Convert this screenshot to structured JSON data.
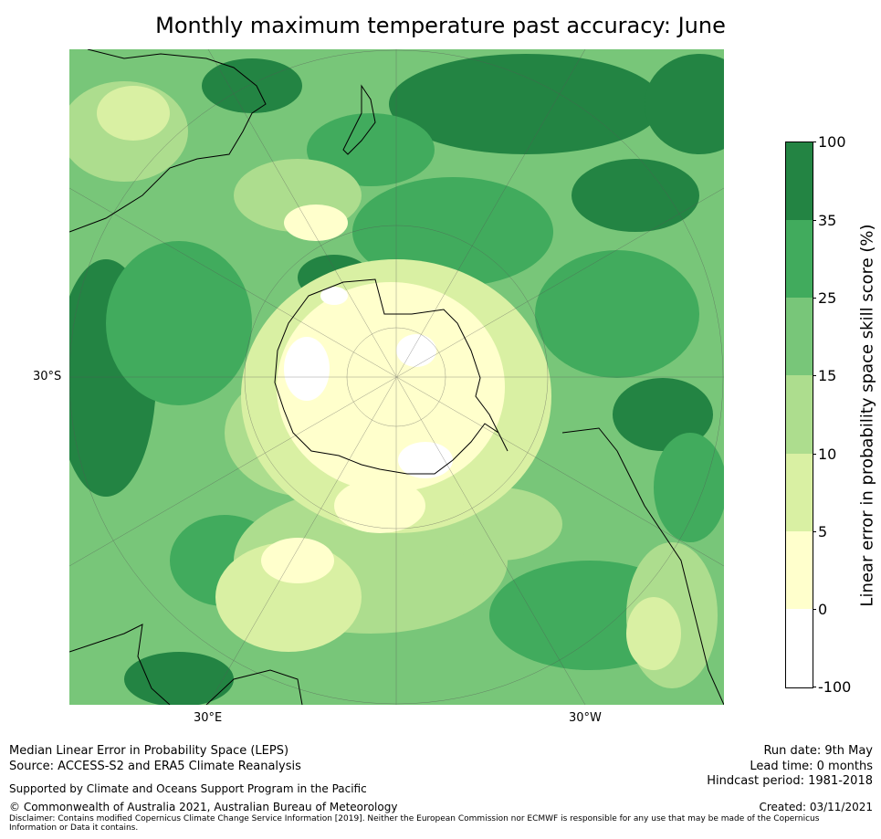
{
  "title": "Monthly maximum temperature past accuracy: June",
  "map": {
    "projection": "south-polar-stereographic",
    "lat_label": "30°S",
    "lon_labels": {
      "east": "30°E",
      "west": "30°W"
    }
  },
  "colorbar": {
    "label": "Linear error in probability space skill score (%)",
    "ticks": [
      "100",
      "35",
      "25",
      "15",
      "10",
      "5",
      "0",
      "-100"
    ],
    "bins": [
      {
        "from": "-100",
        "to": "0",
        "color": "#ffffff"
      },
      {
        "from": "0",
        "to": "5",
        "color": "#ffffcc"
      },
      {
        "from": "5",
        "to": "10",
        "color": "#d9f0a3"
      },
      {
        "from": "10",
        "to": "15",
        "color": "#addd8e"
      },
      {
        "from": "15",
        "to": "25",
        "color": "#78c679"
      },
      {
        "from": "25",
        "to": "35",
        "color": "#41ab5d"
      },
      {
        "from": "35",
        "to": "100",
        "color": "#238443"
      }
    ]
  },
  "footer": {
    "method": "Median Linear Error in Probability Space (LEPS)",
    "source": "Source: ACCESS-S2 and ERA5 Climate Reanalysis",
    "support": "Supported by Climate and Oceans Support Program in the Pacific",
    "copyright": "© Commonwealth of Australia 2021, Australian Bureau of Meteorology",
    "disclaimer": "Disclaimer: Contains modified Copernicus Climate Change Service Information [2019]. Neither the European Commission nor ECMWF is responsible for any use that may be made of the Copernicus Information or Data it contains.",
    "run_date": "Run date: 9th May",
    "lead_time": "Lead time: 0 months",
    "hindcast": "Hindcast period: 1981-2018",
    "created": "Created: 03/11/2021"
  }
}
